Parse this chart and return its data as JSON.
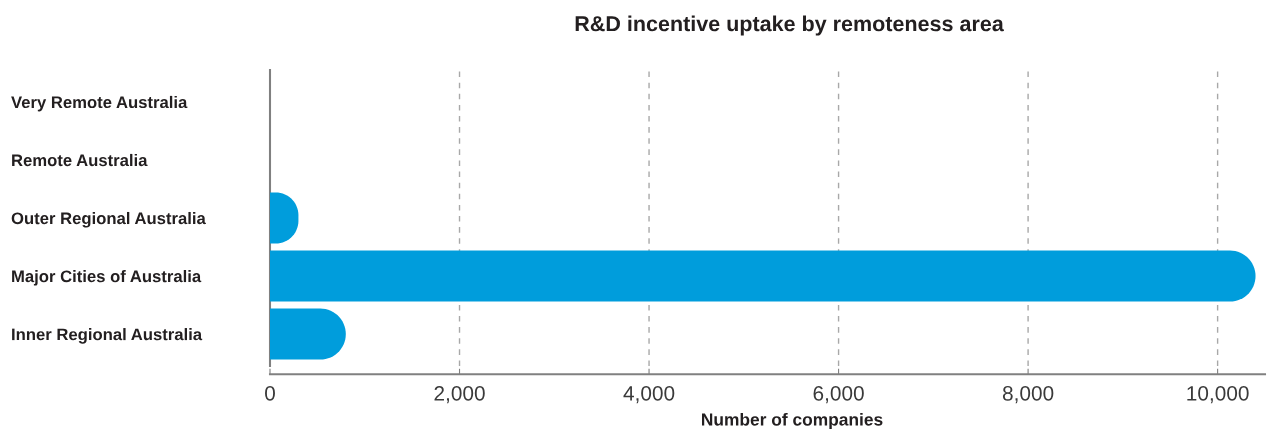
{
  "chart_data": {
    "type": "bar",
    "orientation": "horizontal",
    "title": "R&D incentive uptake by remoteness area",
    "xlabel": "Number of companies",
    "categories": [
      "Very Remote Australia",
      "Remote Australia",
      "Outer Regional Australia",
      "Major Cities of Australia",
      "Inner Regional Australia"
    ],
    "values": [
      0,
      0,
      300,
      10400,
      800
    ],
    "color": "#009ddc",
    "xlim": [
      0,
      10500
    ],
    "xticks": [
      0,
      {
        "value": 2000,
        "label": "2,000"
      },
      {
        "value": 4000,
        "label": "4,000"
      },
      {
        "value": 6000,
        "label": "6,000"
      },
      {
        "value": 8000,
        "label": "8,000"
      },
      {
        "value": 10000,
        "label": "10,000"
      }
    ],
    "grid": "x"
  }
}
